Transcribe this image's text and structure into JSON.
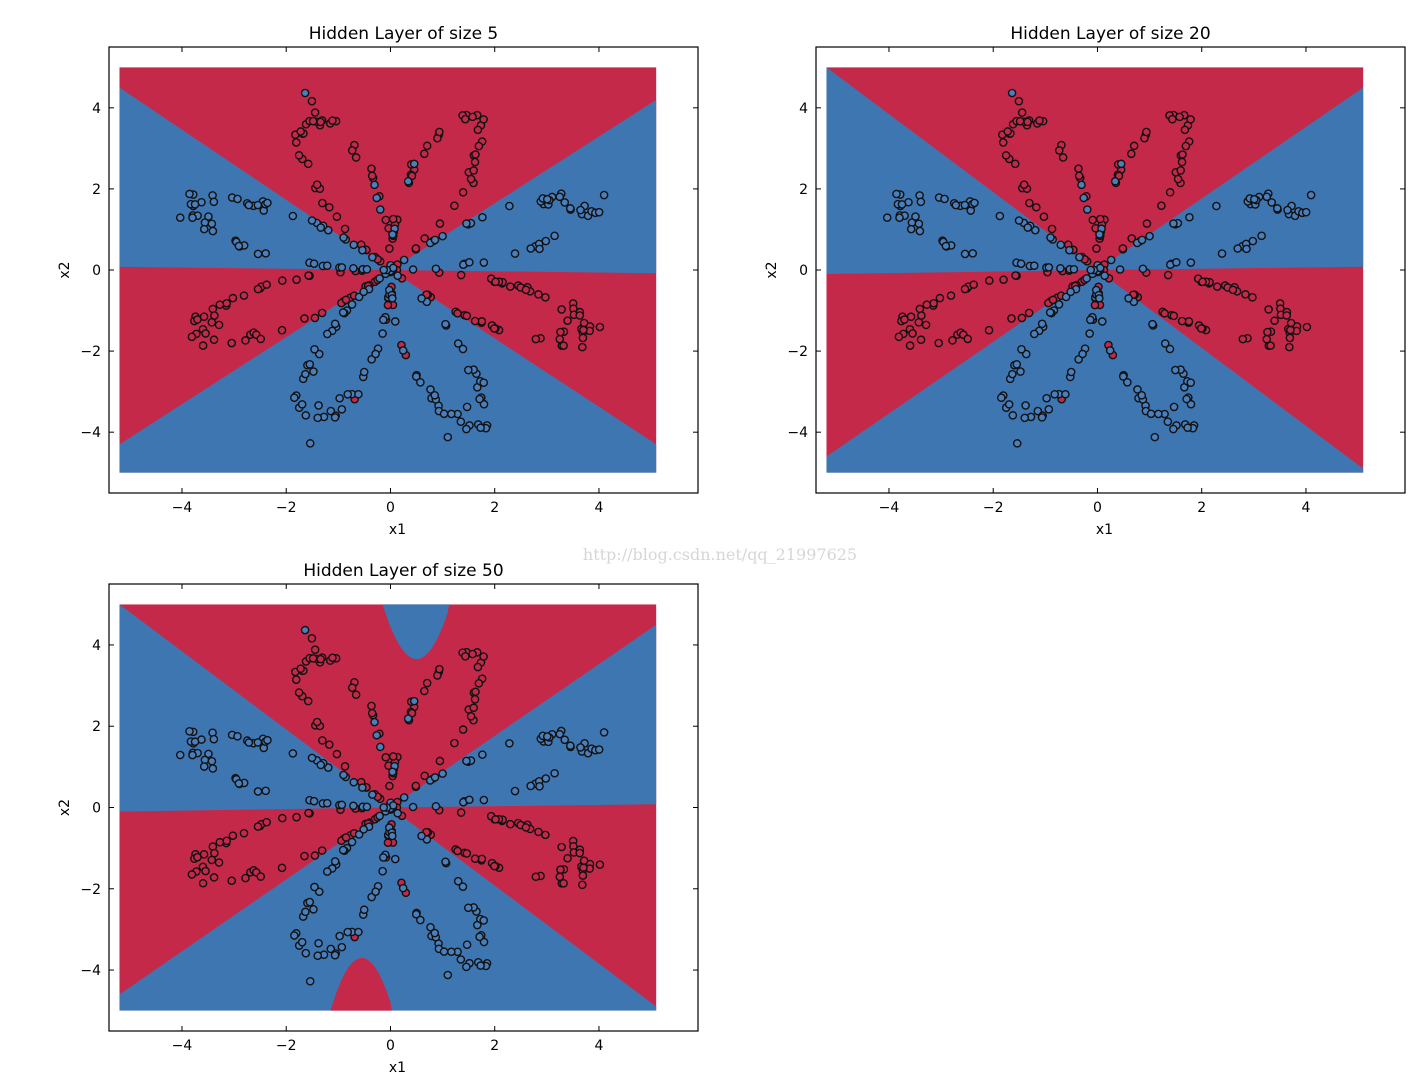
{
  "watermark": "http://blog.csdn.net/qq_21997625",
  "colors": {
    "red_region": "#c5294a",
    "blue_region": "#3e76b2",
    "red_point": "#c5294a",
    "blue_point": "#4a7fbd",
    "point_edge": "#111111"
  },
  "chart_data": [
    {
      "type": "scatter",
      "title": "Hidden Layer of size 5",
      "xlabel": "x1",
      "ylabel": "x2",
      "xlim": [
        -5.4,
        5.9
      ],
      "ylim": [
        -5.5,
        5.5
      ],
      "region_extent": {
        "x": [
          -5.2,
          5.1
        ],
        "y": [
          -5.0,
          5.0
        ]
      },
      "xticks": [
        -4,
        -2,
        0,
        2,
        4
      ],
      "yticks": [
        -4,
        -2,
        0,
        2,
        4
      ],
      "xtick_labels": [
        "−4",
        "−2",
        "0",
        "2",
        "4"
      ],
      "ytick_labels": [
        "−4",
        "−2",
        "0",
        "2",
        "4"
      ],
      "decision": "four_wedges",
      "size_bumps": false,
      "series": [
        {
          "label": "red",
          "description": "petals up/down and left-right lower"
        },
        {
          "label": "blue",
          "description": "petals left-right upper and lower-middle"
        }
      ]
    },
    {
      "type": "scatter",
      "title": "Hidden Layer of size 20",
      "xlabel": "x1",
      "ylabel": "x2",
      "xlim": [
        -5.4,
        5.9
      ],
      "ylim": [
        -5.5,
        5.5
      ],
      "region_extent": {
        "x": [
          -5.2,
          5.1
        ],
        "y": [
          -5.0,
          5.0
        ]
      },
      "xticks": [
        -4,
        -2,
        0,
        2,
        4
      ],
      "yticks": [
        -4,
        -2,
        0,
        2,
        4
      ],
      "xtick_labels": [
        "−4",
        "−2",
        "0",
        "2",
        "4"
      ],
      "ytick_labels": [
        "−4",
        "−2",
        "0",
        "2",
        "4"
      ],
      "decision": "four_wedges",
      "size_bumps": false
    },
    {
      "type": "scatter",
      "title": "Hidden Layer of size 50",
      "xlabel": "x1",
      "ylabel": "x2",
      "xlim": [
        -5.4,
        5.9
      ],
      "ylim": [
        -5.5,
        5.5
      ],
      "region_extent": {
        "x": [
          -5.2,
          5.1
        ],
        "y": [
          -5.0,
          5.0
        ]
      },
      "xticks": [
        -4,
        -2,
        0,
        2,
        4
      ],
      "yticks": [
        -4,
        -2,
        0,
        2,
        4
      ],
      "xtick_labels": [
        "−4",
        "−2",
        "0",
        "2",
        "4"
      ],
      "ytick_labels": [
        "−4",
        "−2",
        "0",
        "2",
        "4"
      ],
      "decision": "four_wedges",
      "size_bumps": true
    }
  ]
}
